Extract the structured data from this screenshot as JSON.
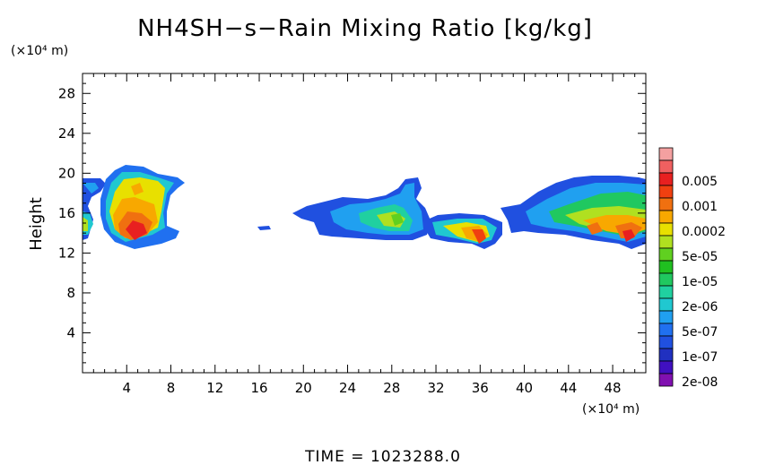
{
  "chart_data": {
    "type": "heatmap",
    "title": "NH4SH−s−Rain Mixing Ratio [kg/kg]",
    "ylabel": "Height",
    "y_unit": "(×10⁴ m)",
    "x_unit": "(×10⁴ m)",
    "time_label": "TIME  =  1023288.0",
    "xlim": [
      0,
      51
    ],
    "ylim": [
      0,
      30
    ],
    "x_ticks": [
      4,
      8,
      12,
      16,
      20,
      24,
      28,
      32,
      36,
      40,
      44,
      48
    ],
    "y_ticks": [
      4,
      8,
      12,
      16,
      20,
      24,
      28
    ],
    "colorbar": [
      {
        "label": "",
        "color": "#f4a0a0"
      },
      {
        "label": "0.005",
        "color": "#f06060"
      },
      {
        "label": "",
        "color": "#e82020"
      },
      {
        "label": "0.001",
        "color": "#f04010"
      },
      {
        "label": "",
        "color": "#f07010"
      },
      {
        "label": "0.0002",
        "color": "#f8a800"
      },
      {
        "label": "",
        "color": "#e8e000"
      },
      {
        "label": "5e-05",
        "color": "#b0e020"
      },
      {
        "label": "",
        "color": "#60d020"
      },
      {
        "label": "1e-05",
        "color": "#20c020"
      },
      {
        "label": "",
        "color": "#20c860"
      },
      {
        "label": "2e-06",
        "color": "#20d0a0"
      },
      {
        "label": "",
        "color": "#20c8d0"
      },
      {
        "label": "5e-07",
        "color": "#20a0f0"
      },
      {
        "label": "",
        "color": "#2070f0"
      },
      {
        "label": "1e-07",
        "color": "#2050e0"
      },
      {
        "label": "",
        "color": "#2030c0"
      },
      {
        "label": "2e-08",
        "color": "#4010c0"
      },
      {
        "label": "",
        "color": "#8010b0"
      }
    ],
    "regions": [
      {
        "name": "left-edge-cloud",
        "x": [
          0,
          1
        ],
        "y": [
          13,
          20
        ],
        "peak": "5e-05"
      },
      {
        "name": "storm-A",
        "x": [
          1,
          10
        ],
        "y": [
          12.5,
          21
        ],
        "peak": "0.001"
      },
      {
        "name": "speck-B",
        "x": [
          15.5,
          17
        ],
        "y": [
          14.5,
          15
        ],
        "peak": "1e-07"
      },
      {
        "name": "cloud-C",
        "x": [
          19.5,
          31
        ],
        "y": [
          13.5,
          20
        ],
        "peak": "5e-05"
      },
      {
        "name": "storm-D",
        "x": [
          31,
          38
        ],
        "y": [
          12.5,
          16
        ],
        "peak": "0.001"
      },
      {
        "name": "storm-E",
        "x": [
          38,
          51
        ],
        "y": [
          12.5,
          20
        ],
        "peak": "0.0002"
      }
    ]
  }
}
